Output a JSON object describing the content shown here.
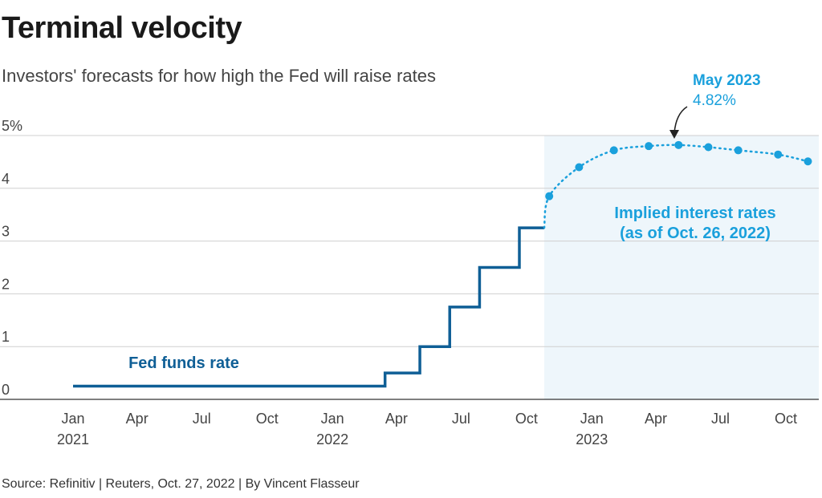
{
  "header": {
    "title": "Terminal velocity",
    "subtitle": "Investors' forecasts for how high the Fed will raise rates"
  },
  "footer": {
    "source": "Source: Refinitiv | Reuters, Oct. 27, 2022 | By Vincent Flasseur"
  },
  "colors": {
    "fed_funds": "#0f5f96",
    "implied": "#1aa0dc",
    "shade": "#eef6fb",
    "grid": "#cfcfcf"
  },
  "chart_data": {
    "type": "line",
    "title": "Terminal velocity",
    "subtitle": "Investors' forecasts for how high the Fed will raise rates",
    "ylim": [
      0,
      5
    ],
    "y_ticks": [
      "0",
      "1",
      "2",
      "3",
      "4",
      "5%"
    ],
    "x_ticks": [
      {
        "label": "Jan",
        "year": "2021",
        "date": "2021-01"
      },
      {
        "label": "Apr",
        "year": "",
        "date": "2021-04"
      },
      {
        "label": "Jul",
        "year": "",
        "date": "2021-07"
      },
      {
        "label": "Oct",
        "year": "",
        "date": "2021-10"
      },
      {
        "label": "Jan",
        "year": "2022",
        "date": "2022-01"
      },
      {
        "label": "Apr",
        "year": "",
        "date": "2022-04"
      },
      {
        "label": "Jul",
        "year": "",
        "date": "2022-07"
      },
      {
        "label": "Oct",
        "year": "",
        "date": "2022-10"
      },
      {
        "label": "Jan",
        "year": "2023",
        "date": "2023-01"
      },
      {
        "label": "Apr",
        "year": "",
        "date": "2023-04"
      },
      {
        "label": "Jul",
        "year": "",
        "date": "2023-07"
      },
      {
        "label": "Oct",
        "year": "",
        "date": "2023-10"
      }
    ],
    "series": [
      {
        "name": "Fed funds rate",
        "style": "step",
        "points": [
          {
            "date": "2021-01-01",
            "value": 0.25
          },
          {
            "date": "2022-03-16",
            "value": 0.5
          },
          {
            "date": "2022-05-04",
            "value": 1.0
          },
          {
            "date": "2022-06-15",
            "value": 1.75
          },
          {
            "date": "2022-07-27",
            "value": 2.5
          },
          {
            "date": "2022-09-21",
            "value": 3.25
          },
          {
            "date": "2022-10-26",
            "value": 3.25
          }
        ]
      },
      {
        "name": "Implied interest rates (as of Oct. 26, 2022)",
        "style": "dotted",
        "points": [
          {
            "date": "2022-11-02",
            "value": 3.85
          },
          {
            "date": "2022-12-14",
            "value": 4.4
          },
          {
            "date": "2023-02-01",
            "value": 4.72
          },
          {
            "date": "2023-03-22",
            "value": 4.8
          },
          {
            "date": "2023-05-03",
            "value": 4.82
          },
          {
            "date": "2023-06-14",
            "value": 4.78
          },
          {
            "date": "2023-07-26",
            "value": 4.72
          },
          {
            "date": "2023-09-20",
            "value": 4.64
          },
          {
            "date": "2023-11-01",
            "value": 4.51
          }
        ]
      }
    ],
    "shaded_region": {
      "start": "2022-10-26",
      "end": "2023-11-20"
    },
    "annotations": {
      "fed_label": "Fed funds rate",
      "implied_label_line1": "Implied interest rates",
      "implied_label_line2": "(as of Oct. 26, 2022)",
      "peak_label": "May 2023",
      "peak_value": "4.82%"
    },
    "grid": true,
    "legend": "none"
  }
}
